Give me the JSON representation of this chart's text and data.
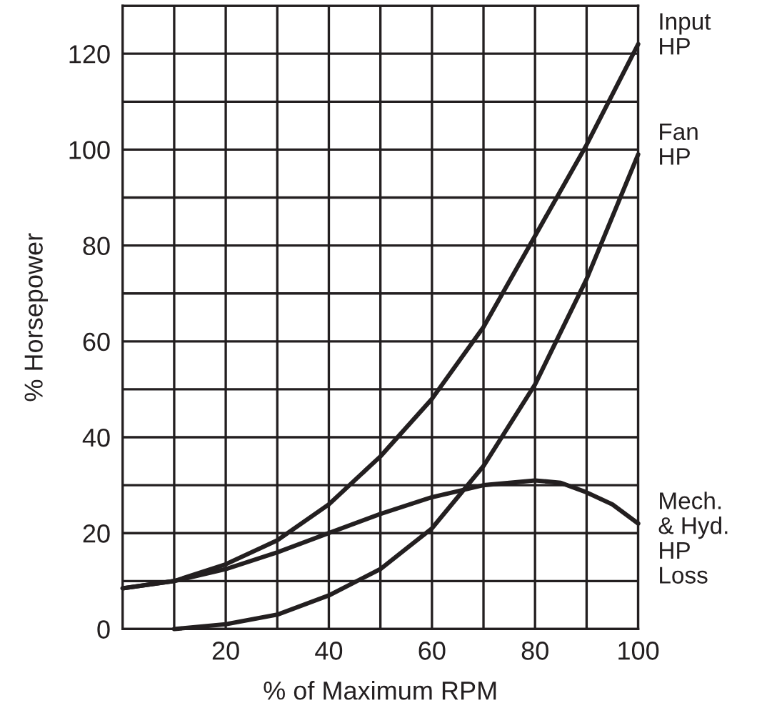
{
  "chart_data": {
    "type": "line",
    "xlabel": "% of Maximum RPM",
    "ylabel": "% Horsepower",
    "series": [
      {
        "name": "Input\nHP",
        "color": "#231f20",
        "x": [
          0,
          10,
          20,
          30,
          40,
          50,
          60,
          70,
          80,
          90,
          100
        ],
        "values": [
          8.5,
          10,
          13.5,
          18.5,
          26,
          36,
          48,
          63,
          82,
          101,
          122
        ]
      },
      {
        "name": "Fan\nHP",
        "color": "#231f20",
        "x": [
          10,
          20,
          30,
          40,
          50,
          60,
          70,
          80,
          90,
          100
        ],
        "values": [
          0,
          1,
          3,
          7,
          12.5,
          21,
          34,
          51,
          73,
          99
        ]
      },
      {
        "name": "Mech.\n& Hyd.\nHP\nLoss",
        "color": "#231f20",
        "x": [
          0,
          10,
          20,
          30,
          40,
          50,
          60,
          70,
          80,
          85,
          90,
          95,
          100
        ],
        "values": [
          8.5,
          10,
          12.5,
          16,
          20,
          24,
          27.5,
          30,
          31,
          30.5,
          28.5,
          26,
          22
        ]
      }
    ],
    "xlim": [
      0,
      100
    ],
    "ylim": [
      0,
      130
    ],
    "xticks": [
      {
        "value": 10,
        "label": null
      },
      20,
      {
        "value": 30,
        "label": null
      },
      40,
      {
        "value": 50,
        "label": null
      },
      60,
      {
        "value": 70,
        "label": null
      },
      80,
      {
        "value": 90,
        "label": null
      },
      100
    ],
    "yticks": [
      0,
      {
        "value": 10,
        "label": null
      },
      20,
      {
        "value": 30,
        "label": null
      },
      40,
      {
        "value": 50,
        "label": null
      },
      60,
      {
        "value": 70,
        "label": null
      },
      80,
      {
        "value": 90,
        "label": null
      },
      100,
      {
        "value": 110,
        "label": null
      },
      120,
      {
        "value": 130,
        "label": null
      }
    ],
    "grid": true,
    "marker": "none",
    "line_style": "solid",
    "legend": false
  }
}
